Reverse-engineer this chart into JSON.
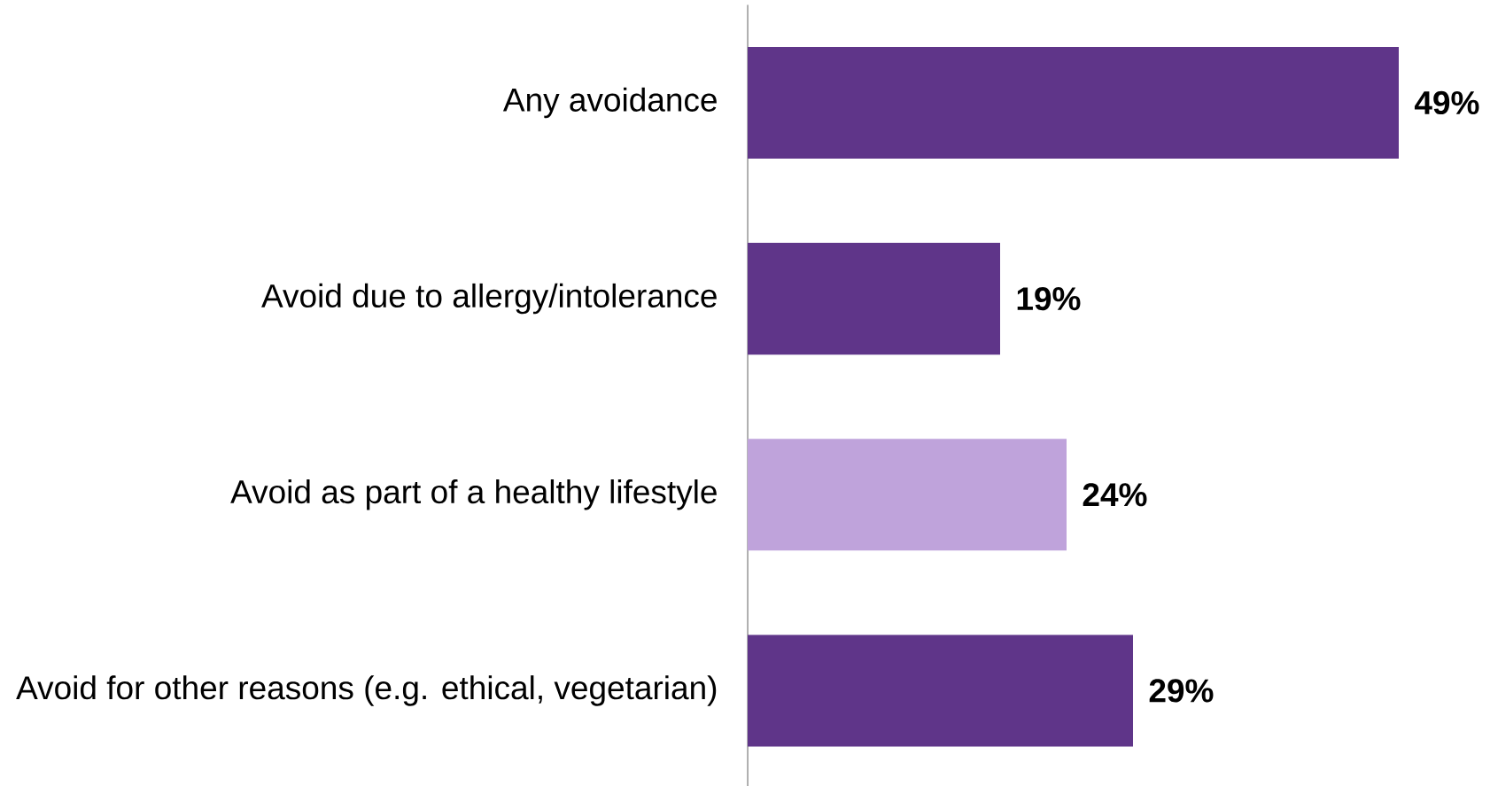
{
  "chart_data": {
    "type": "bar",
    "orientation": "horizontal",
    "categories": [
      "Any avoidance",
      "Avoid due to allergy/intolerance",
      "Avoid as part of a healthy lifestyle",
      "Avoid for other reasons (e.g. ethical, vegetarian)"
    ],
    "values": [
      49,
      19,
      24,
      29
    ],
    "colors": [
      "#5f3589",
      "#5f3589",
      "#bfa3db",
      "#5f3589"
    ],
    "value_labels": [
      "49%",
      "19%",
      "24%",
      "29%"
    ]
  }
}
